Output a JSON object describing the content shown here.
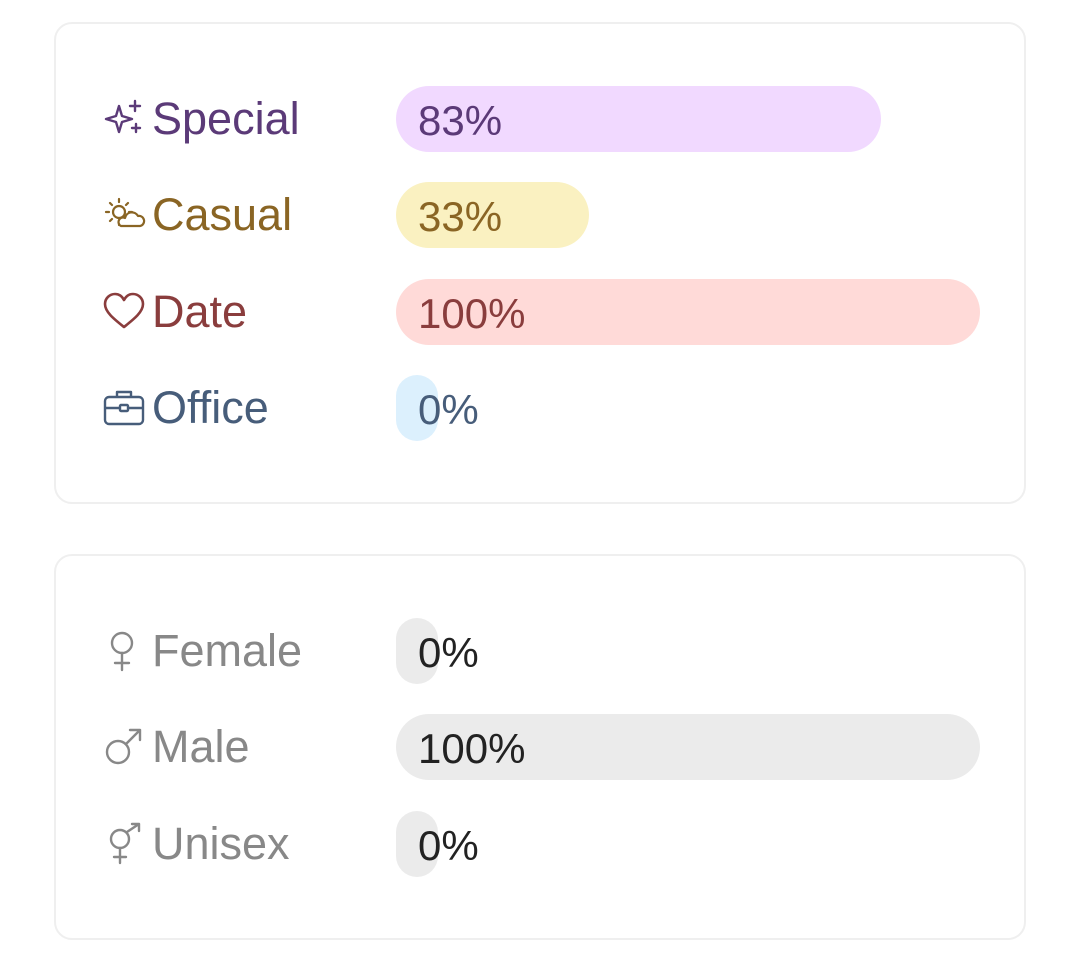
{
  "occasion": {
    "rows": [
      {
        "label": "Special",
        "value": "83%",
        "fraction": 0.83,
        "icon": "sparkles-icon",
        "text_color": "#5b3a78",
        "fill_color": "#f1d9ff"
      },
      {
        "label": "Casual",
        "value": "33%",
        "fraction": 0.33,
        "icon": "sun-cloud-icon",
        "text_color": "#8a6524",
        "fill_color": "#faf1c1"
      },
      {
        "label": "Date",
        "value": "100%",
        "fraction": 1.0,
        "icon": "heart-icon",
        "text_color": "#8a3d3d",
        "fill_color": "#ffdad8"
      },
      {
        "label": "Office",
        "value": "0%",
        "fraction": 0.0,
        "icon": "briefcase-icon",
        "text_color": "#475d7a",
        "fill_color": "#dcf0fd"
      }
    ]
  },
  "gender": {
    "rows": [
      {
        "label": "Female",
        "value": "0%",
        "fraction": 0.0,
        "icon": "female-symbol-icon",
        "text_color": "#888888",
        "value_color": "#222222",
        "fill_color": "#ebebeb"
      },
      {
        "label": "Male",
        "value": "100%",
        "fraction": 1.0,
        "icon": "male-symbol-icon",
        "text_color": "#888888",
        "value_color": "#222222",
        "fill_color": "#ebebeb"
      },
      {
        "label": "Unisex",
        "value": "0%",
        "fraction": 0.0,
        "icon": "unisex-symbol-icon",
        "text_color": "#888888",
        "value_color": "#222222",
        "fill_color": "#ebebeb"
      }
    ]
  }
}
